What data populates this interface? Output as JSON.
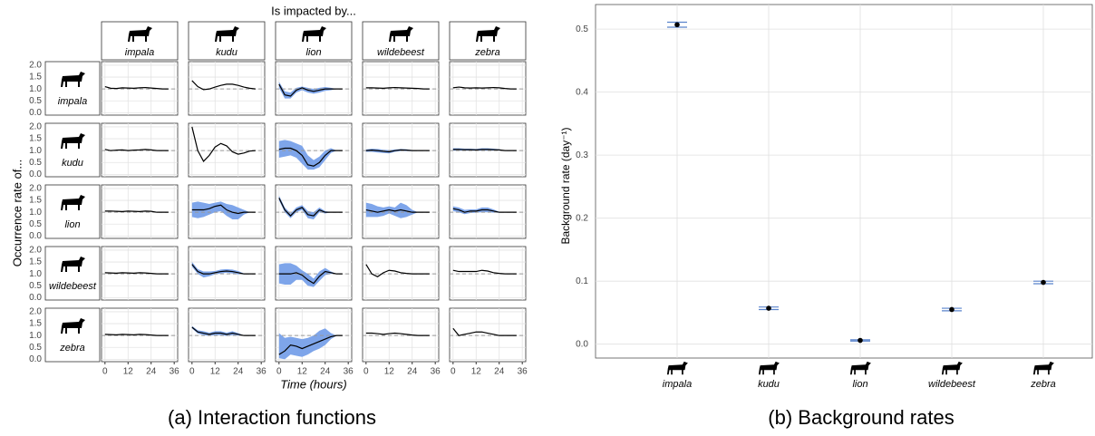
{
  "chart_data": [
    {
      "type": "facet-line",
      "title": "Is impacted by...",
      "ylabel": "Occurrence rate of...",
      "xlabel": "Time (hours)",
      "caption": "(a) Interaction functions",
      "columns": [
        "impala",
        "kudu",
        "lion",
        "wildebeest",
        "zebra"
      ],
      "rows": [
        "impala",
        "kudu",
        "lion",
        "wildebeest",
        "zebra"
      ],
      "x": [
        0,
        3,
        6,
        9,
        12,
        15,
        18,
        21,
        24,
        27,
        30,
        33
      ],
      "xlim": [
        -1.8,
        37.8
      ],
      "xticks": [
        0,
        12,
        24,
        36
      ],
      "ylim": [
        -0.1,
        2.15
      ],
      "yticks": [
        {
          "value": 0,
          "label": "0.0"
        },
        {
          "value": 0.5,
          "label": "0.5"
        },
        {
          "value": 1,
          "label": "1.0"
        },
        {
          "value": 1.5,
          "label": "1.5"
        },
        {
          "value": 2,
          "label": "2.0"
        }
      ],
      "reference": 1,
      "grid": true,
      "line_color": "#000000",
      "band_color": "#7ea5ea",
      "reference_color": "#999999",
      "panels": [
        [
          {
            "values": [
              1.1,
              1.03,
              1.02,
              1.05,
              1.04,
              1.03,
              1.05,
              1.06,
              1.04,
              1.02,
              1.0,
              1.0
            ]
          },
          {
            "values": [
              1.35,
              1.1,
              0.97,
              1.0,
              1.08,
              1.15,
              1.2,
              1.2,
              1.15,
              1.08,
              1.03,
              1.0
            ]
          },
          {
            "values": [
              1.2,
              0.75,
              0.7,
              0.95,
              1.05,
              0.95,
              0.9,
              0.95,
              1.0,
              1.0,
              1.0,
              1.0
            ],
            "lower": [
              1.05,
              0.6,
              0.6,
              0.85,
              0.95,
              0.85,
              0.8,
              0.85,
              0.92,
              0.95,
              1.0,
              1.0
            ],
            "upper": [
              1.3,
              0.9,
              0.85,
              1.05,
              1.1,
              1.05,
              1.0,
              1.05,
              1.08,
              1.05,
              1.0,
              1.0
            ]
          },
          {
            "values": [
              1.05,
              1.05,
              1.04,
              1.03,
              1.05,
              1.06,
              1.05,
              1.04,
              1.03,
              1.02,
              1.0,
              1.0
            ]
          },
          {
            "values": [
              1.05,
              1.08,
              1.05,
              1.04,
              1.05,
              1.04,
              1.05,
              1.06,
              1.05,
              1.02,
              1.0,
              1.0
            ]
          }
        ],
        [
          {
            "values": [
              1.05,
              1.0,
              1.02,
              1.03,
              1.0,
              1.02,
              1.03,
              1.05,
              1.03,
              1.0,
              1.0,
              1.0
            ]
          },
          {
            "values": [
              2.0,
              1.0,
              0.55,
              0.8,
              1.15,
              1.3,
              1.2,
              0.95,
              0.85,
              0.9,
              0.98,
              1.0
            ]
          },
          {
            "values": [
              1.05,
              1.1,
              1.1,
              1.0,
              0.8,
              0.4,
              0.35,
              0.5,
              0.8,
              1.0,
              1.0,
              1.0
            ],
            "lower": [
              0.7,
              0.75,
              0.8,
              0.7,
              0.45,
              0.2,
              0.2,
              0.3,
              0.6,
              0.9,
              1.0,
              1.0
            ],
            "upper": [
              1.4,
              1.45,
              1.4,
              1.3,
              1.2,
              0.8,
              0.6,
              0.75,
              1.0,
              1.1,
              1.0,
              1.0
            ]
          },
          {
            "values": [
              1.0,
              1.02,
              1.0,
              0.97,
              0.95,
              1.0,
              1.03,
              1.02,
              1.0,
              1.0,
              1.0,
              1.0
            ],
            "lower": [
              0.95,
              0.95,
              0.92,
              0.9,
              0.88,
              0.95,
              0.98,
              0.98,
              0.98,
              1.0,
              1.0,
              1.0
            ],
            "upper": [
              1.05,
              1.08,
              1.07,
              1.04,
              1.02,
              1.05,
              1.07,
              1.06,
              1.02,
              1.0,
              1.0,
              1.0
            ]
          },
          {
            "values": [
              1.05,
              1.05,
              1.04,
              1.04,
              1.03,
              1.05,
              1.05,
              1.04,
              1.03,
              1.0,
              1.0,
              1.0
            ],
            "lower": [
              1.0,
              1.0,
              1.0,
              1.0,
              0.99,
              1.0,
              1.0,
              1.0,
              1.0,
              1.0,
              1.0,
              1.0
            ],
            "upper": [
              1.1,
              1.1,
              1.08,
              1.08,
              1.07,
              1.1,
              1.1,
              1.08,
              1.06,
              1.0,
              1.0,
              1.0
            ]
          }
        ],
        [
          {
            "values": [
              1.05,
              1.05,
              1.04,
              1.03,
              1.05,
              1.04,
              1.03,
              1.05,
              1.04,
              1.0,
              1.0,
              1.0
            ]
          },
          {
            "values": [
              1.1,
              1.1,
              1.1,
              1.15,
              1.25,
              1.3,
              1.1,
              1.0,
              0.95,
              1.0,
              1.0,
              1.0
            ],
            "lower": [
              0.8,
              0.75,
              0.8,
              0.9,
              1.0,
              1.05,
              0.85,
              0.7,
              0.7,
              0.9,
              1.0,
              1.0
            ],
            "upper": [
              1.4,
              1.45,
              1.4,
              1.35,
              1.4,
              1.45,
              1.35,
              1.3,
              1.2,
              1.1,
              1.0,
              1.0
            ]
          },
          {
            "values": [
              1.6,
              1.1,
              0.85,
              1.1,
              1.2,
              0.9,
              0.85,
              1.1,
              1.0,
              1.0,
              1.0,
              1.0
            ],
            "lower": [
              1.5,
              1.0,
              0.75,
              1.0,
              1.1,
              0.75,
              0.7,
              1.0,
              0.95,
              1.0,
              1.0,
              1.0
            ],
            "upper": [
              1.7,
              1.2,
              0.95,
              1.2,
              1.3,
              1.05,
              1.0,
              1.2,
              1.05,
              1.0,
              1.0,
              1.0
            ]
          },
          {
            "values": [
              1.1,
              1.05,
              1.0,
              1.05,
              1.1,
              1.05,
              1.1,
              1.05,
              1.0,
              1.0,
              1.0,
              1.0
            ],
            "lower": [
              0.8,
              0.8,
              0.8,
              0.85,
              0.95,
              0.85,
              0.75,
              0.8,
              0.9,
              1.0,
              1.0,
              1.0
            ],
            "upper": [
              1.4,
              1.35,
              1.25,
              1.2,
              1.25,
              1.2,
              1.4,
              1.3,
              1.1,
              1.0,
              1.0,
              1.0
            ]
          },
          {
            "values": [
              1.15,
              1.1,
              1.0,
              1.05,
              1.05,
              1.1,
              1.1,
              1.05,
              1.0,
              1.0,
              1.0,
              1.0
            ],
            "lower": [
              1.05,
              1.0,
              0.92,
              0.97,
              0.98,
              1.0,
              1.0,
              0.98,
              0.98,
              1.0,
              1.0,
              1.0
            ],
            "upper": [
              1.25,
              1.2,
              1.1,
              1.12,
              1.12,
              1.2,
              1.2,
              1.12,
              1.02,
              1.0,
              1.0,
              1.0
            ]
          }
        ],
        [
          {
            "values": [
              1.05,
              1.04,
              1.03,
              1.05,
              1.04,
              1.03,
              1.05,
              1.04,
              1.02,
              1.0,
              1.0,
              1.0
            ]
          },
          {
            "values": [
              1.4,
              1.1,
              1.0,
              1.0,
              1.05,
              1.1,
              1.12,
              1.1,
              1.05,
              1.0,
              1.0,
              1.0
            ],
            "lower": [
              1.3,
              1.0,
              0.85,
              0.9,
              0.98,
              1.02,
              1.05,
              1.02,
              0.98,
              0.98,
              1.0,
              1.0
            ],
            "upper": [
              1.5,
              1.2,
              1.1,
              1.1,
              1.12,
              1.18,
              1.2,
              1.18,
              1.12,
              1.02,
              1.0,
              1.0
            ]
          },
          {
            "values": [
              1.0,
              1.0,
              1.0,
              1.05,
              0.95,
              0.75,
              0.6,
              0.9,
              1.1,
              1.05,
              1.0,
              1.0
            ],
            "lower": [
              0.6,
              0.55,
              0.55,
              0.75,
              0.75,
              0.5,
              0.45,
              0.7,
              0.95,
              1.0,
              1.0,
              1.0
            ],
            "upper": [
              1.4,
              1.45,
              1.45,
              1.35,
              1.15,
              1.0,
              0.8,
              1.1,
              1.25,
              1.1,
              1.0,
              1.0
            ]
          },
          {
            "values": [
              1.4,
              1.0,
              0.88,
              1.05,
              1.15,
              1.12,
              1.05,
              1.02,
              1.0,
              1.0,
              1.0,
              1.0
            ]
          },
          {
            "values": [
              1.15,
              1.1,
              1.1,
              1.1,
              1.1,
              1.15,
              1.12,
              1.05,
              1.02,
              1.0,
              1.0,
              1.0
            ]
          }
        ],
        [
          {
            "values": [
              1.05,
              1.04,
              1.03,
              1.05,
              1.04,
              1.03,
              1.05,
              1.04,
              1.02,
              1.0,
              1.0,
              1.0
            ]
          },
          {
            "values": [
              1.35,
              1.15,
              1.1,
              1.05,
              1.1,
              1.1,
              1.05,
              1.1,
              1.05,
              1.0,
              1.0,
              1.0
            ],
            "lower": [
              1.3,
              1.08,
              1.02,
              0.98,
              1.02,
              1.02,
              0.98,
              1.02,
              1.0,
              1.0,
              1.0,
              1.0
            ],
            "upper": [
              1.4,
              1.22,
              1.18,
              1.12,
              1.18,
              1.18,
              1.12,
              1.18,
              1.1,
              1.0,
              1.0,
              1.0
            ]
          },
          {
            "values": [
              0.2,
              0.35,
              0.6,
              0.55,
              0.45,
              0.55,
              0.65,
              0.75,
              0.85,
              0.95,
              1.0,
              1.0
            ],
            "lower": [
              0.05,
              0.0,
              0.2,
              0.15,
              0.1,
              0.2,
              0.35,
              0.45,
              0.6,
              0.85,
              1.0,
              1.0
            ],
            "upper": [
              1.1,
              0.9,
              0.95,
              0.9,
              0.85,
              0.9,
              1.0,
              1.2,
              1.3,
              1.1,
              1.0,
              1.0
            ]
          },
          {
            "values": [
              1.1,
              1.1,
              1.08,
              1.05,
              1.08,
              1.1,
              1.08,
              1.05,
              1.02,
              1.0,
              1.0,
              1.0
            ]
          },
          {
            "values": [
              1.3,
              1.0,
              1.05,
              1.1,
              1.15,
              1.15,
              1.1,
              1.05,
              1.0,
              1.0,
              1.0,
              1.0
            ]
          }
        ]
      ]
    },
    {
      "type": "errorbar",
      "ylabel": "Background rate (day⁻¹)",
      "caption": "(b) Background rates",
      "categories": [
        "impala",
        "kudu",
        "lion",
        "wildebeest",
        "zebra"
      ],
      "values": [
        0.507,
        0.057,
        0.006,
        0.055,
        0.098
      ],
      "errors": [
        0.004,
        0.002,
        0.001,
        0.002,
        0.002
      ],
      "color": "#000000",
      "error_color": "#5b84cc",
      "ylim": [
        -0.022,
        0.539
      ],
      "yticks": [
        {
          "value": 0,
          "label": "0.0"
        },
        {
          "value": 0.1,
          "label": "0.1"
        },
        {
          "value": 0.2,
          "label": "0.2"
        },
        {
          "value": 0.3,
          "label": "0.3"
        },
        {
          "value": 0.4,
          "label": "0.4"
        },
        {
          "value": 0.5,
          "label": "0.5"
        }
      ],
      "grid": true
    }
  ]
}
